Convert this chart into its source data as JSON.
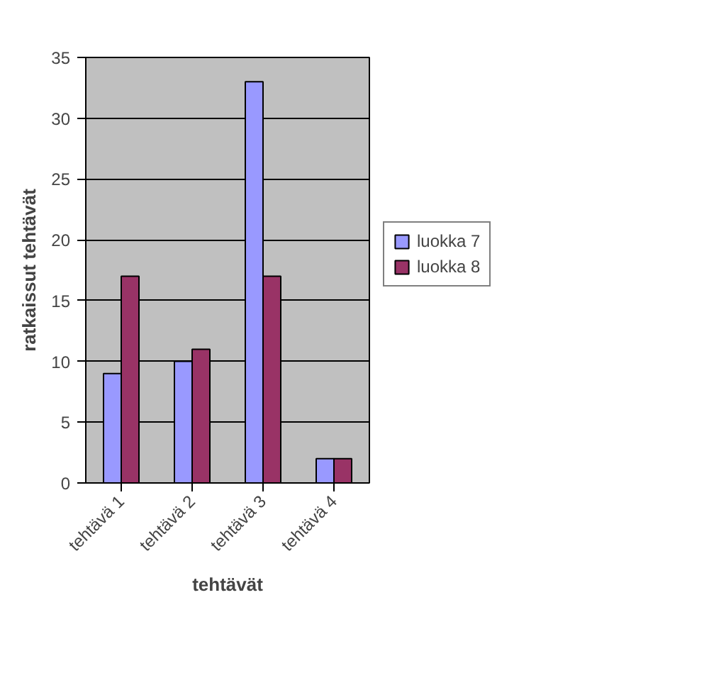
{
  "chart_data": {
    "type": "bar",
    "xlabel": "tehtävät",
    "ylabel": "ratkaissut tehtävät",
    "categories": [
      "tehtävä 1",
      "tehtävä 2",
      "tehtävä 3",
      "tehtävä 4"
    ],
    "series": [
      {
        "name": "luokka 7",
        "color": "#9999ff",
        "values": [
          9,
          10,
          33,
          2
        ]
      },
      {
        "name": "luokka 8",
        "color": "#993366",
        "values": [
          17,
          11,
          17,
          2
        ]
      }
    ],
    "ylim": [
      0,
      35
    ],
    "yticks": [
      0,
      5,
      10,
      15,
      20,
      25,
      30,
      35
    ],
    "grid": "y",
    "legend": "right"
  }
}
